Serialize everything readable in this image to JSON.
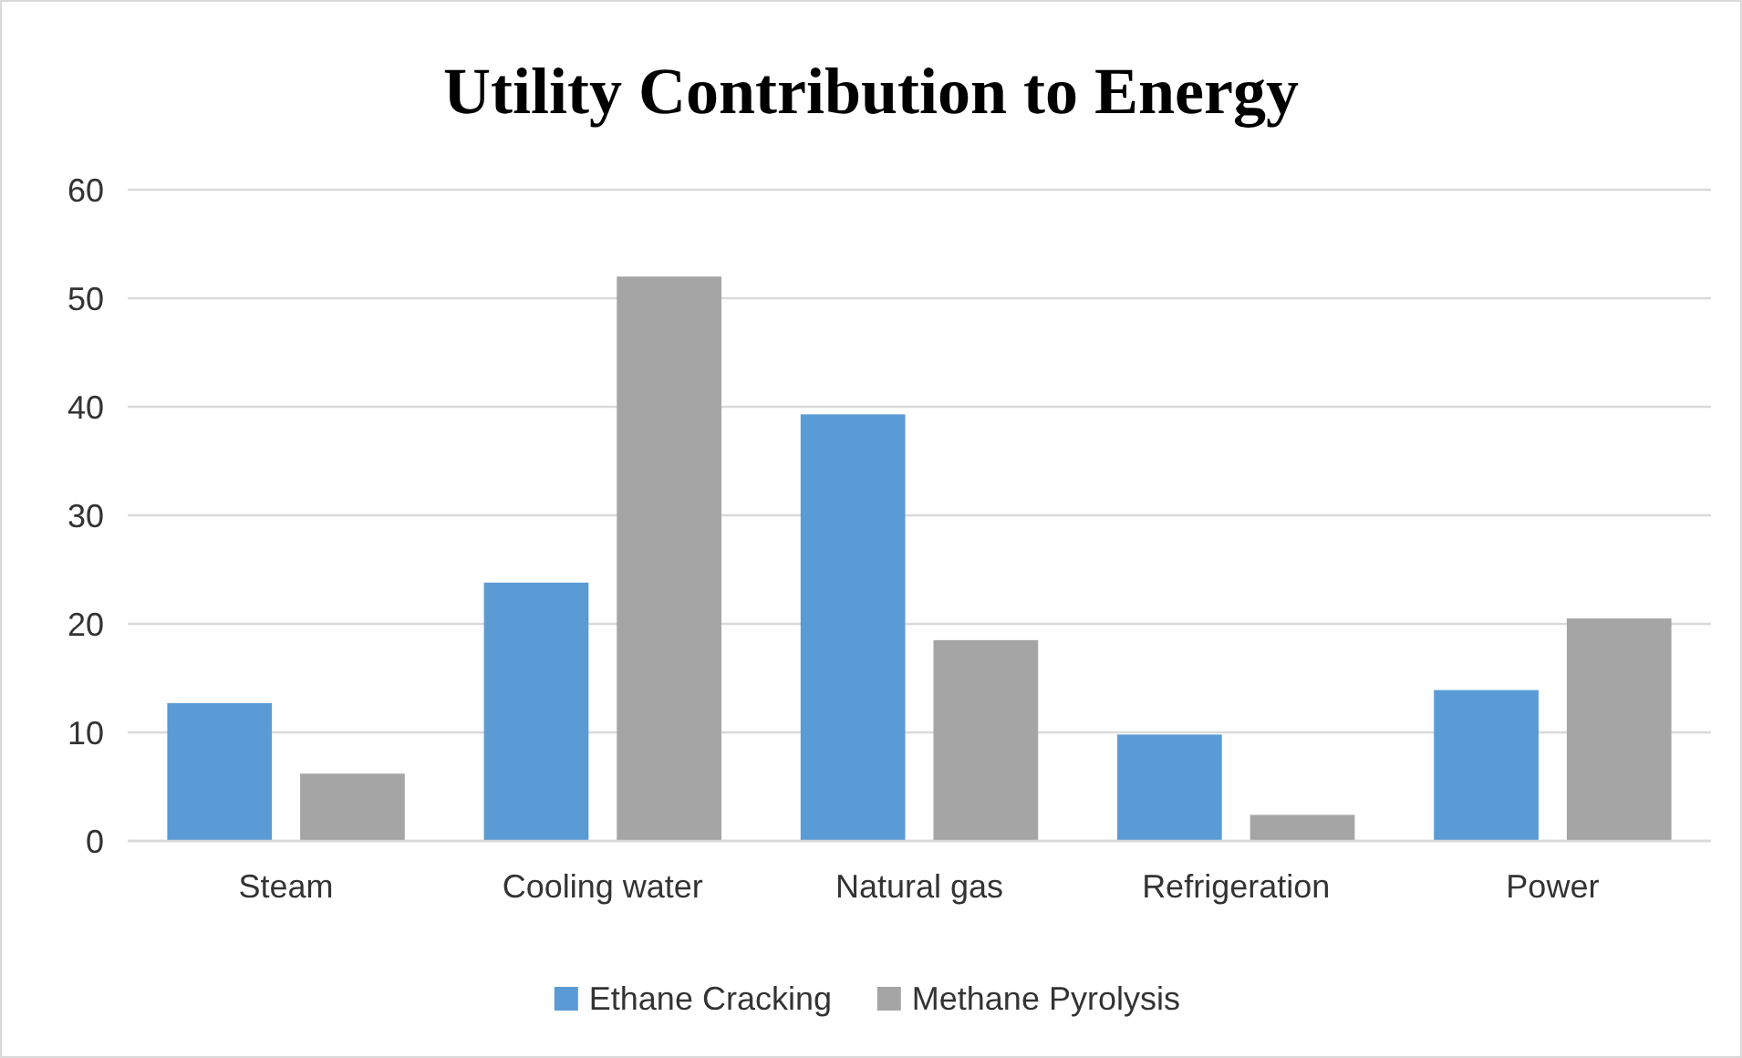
{
  "chart_data": {
    "type": "bar",
    "title": "Utility Contribution to Energy",
    "categories": [
      "Steam",
      "Cooling water",
      "Natural gas",
      "Refrigeration",
      "Power"
    ],
    "series": [
      {
        "name": "Ethane Cracking",
        "color": "#5b9bd5",
        "values": [
          12.7,
          23.8,
          39.3,
          9.8,
          13.9
        ]
      },
      {
        "name": "Methane Pyrolysis",
        "color": "#a5a5a5",
        "values": [
          6.2,
          52.0,
          18.5,
          2.4,
          20.5
        ]
      }
    ],
    "ylim": [
      0,
      60
    ],
    "yticks": [
      0,
      10,
      20,
      30,
      40,
      50,
      60
    ],
    "grid": "y",
    "legend": "bottom"
  }
}
